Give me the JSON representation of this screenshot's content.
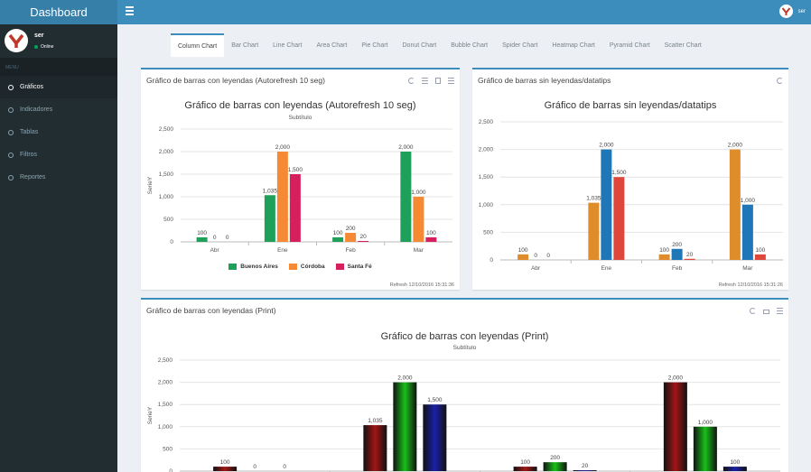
{
  "app": {
    "title": "Dashboard",
    "username": "ser"
  },
  "user_panel": {
    "name": "ser",
    "status": "Online"
  },
  "sidebar": {
    "header": "MENU",
    "items": [
      {
        "label": "Gráficos",
        "active": true
      },
      {
        "label": "Indicadores"
      },
      {
        "label": "Tablas"
      },
      {
        "label": "Filtros"
      },
      {
        "label": "Reportes"
      }
    ]
  },
  "tabs": [
    "Column Chart",
    "Bar Chart",
    "Line Chart",
    "Area Chart",
    "Pie Chart",
    "Donut Chart",
    "Bubble Chart",
    "Spider Chart",
    "Heatmap Chart",
    "Pyramid Chart",
    "Scatter Chart"
  ],
  "boxes": {
    "box1": {
      "header": "Gráfico de barras con leyendas (Autorefresh 10 seg)",
      "refresh": "Refresh 12/10/2016 15:31:36"
    },
    "box2": {
      "header": "Gráfico de barras sin leyendas/datatips",
      "refresh": "Refresh 12/10/2016 15:31:26"
    },
    "box3": {
      "header": "Gráfico de barras con leyendas (Print)"
    }
  },
  "colors": {
    "accent": "#3c8dbc",
    "chart1": [
      "#1fa05a",
      "#f68a34",
      "#d6205d"
    ],
    "chart2": [
      "#df8c2a",
      "#1f77b8",
      "#e0473c"
    ],
    "chart3": [
      "#a31515",
      "#18c018",
      "#1a20a8"
    ]
  },
  "chart_data": [
    {
      "type": "bar",
      "title": "Gráfico de barras con leyendas (Autorefresh 10 seg)",
      "subtitle": "Subtítulo",
      "ylabel": "SerieY",
      "xlabel": "",
      "categories": [
        "Abr",
        "Ene",
        "Feb",
        "Mar"
      ],
      "series": [
        {
          "name": "Buenos Aires",
          "values": [
            100,
            1035,
            100,
            2000
          ]
        },
        {
          "name": "Córdoba",
          "values": [
            0,
            2000,
            200,
            1000
          ]
        },
        {
          "name": "Santa Fé",
          "values": [
            0,
            1500,
            20,
            100
          ]
        }
      ],
      "ylim": [
        0,
        2500
      ],
      "yticks": [
        0,
        500,
        1000,
        1500,
        2000,
        2500
      ],
      "legend": "bottom",
      "grid": true
    },
    {
      "type": "bar",
      "title": "Gráfico de barras sin leyendas/datatips",
      "subtitle": "",
      "ylabel": "",
      "xlabel": "",
      "categories": [
        "Abr",
        "Ene",
        "Feb",
        "Mar"
      ],
      "series": [
        {
          "values": [
            100,
            1035,
            100,
            2000
          ]
        },
        {
          "values": [
            0,
            2000,
            200,
            1000
          ]
        },
        {
          "values": [
            0,
            1500,
            20,
            100
          ]
        }
      ],
      "ylim": [
        0,
        2500
      ],
      "yticks": [
        0,
        500,
        1000,
        1500,
        2000,
        2500
      ],
      "legend": "none",
      "grid": true
    },
    {
      "type": "bar",
      "title": "Gráfico de barras con leyendas (Print)",
      "subtitle": "Subtítulo",
      "ylabel": "SerieY",
      "xlabel": "",
      "categories": [
        "Abr",
        "Ene",
        "Feb",
        "Mar"
      ],
      "series": [
        {
          "values": [
            100,
            1035,
            100,
            2000
          ]
        },
        {
          "values": [
            0,
            2000,
            200,
            1000
          ]
        },
        {
          "values": [
            0,
            1500,
            20,
            100
          ]
        }
      ],
      "ylim": [
        0,
        2500
      ],
      "yticks": [
        0,
        500,
        1000,
        1500,
        2000,
        2500
      ],
      "legend": "bottom",
      "grid": true
    }
  ]
}
